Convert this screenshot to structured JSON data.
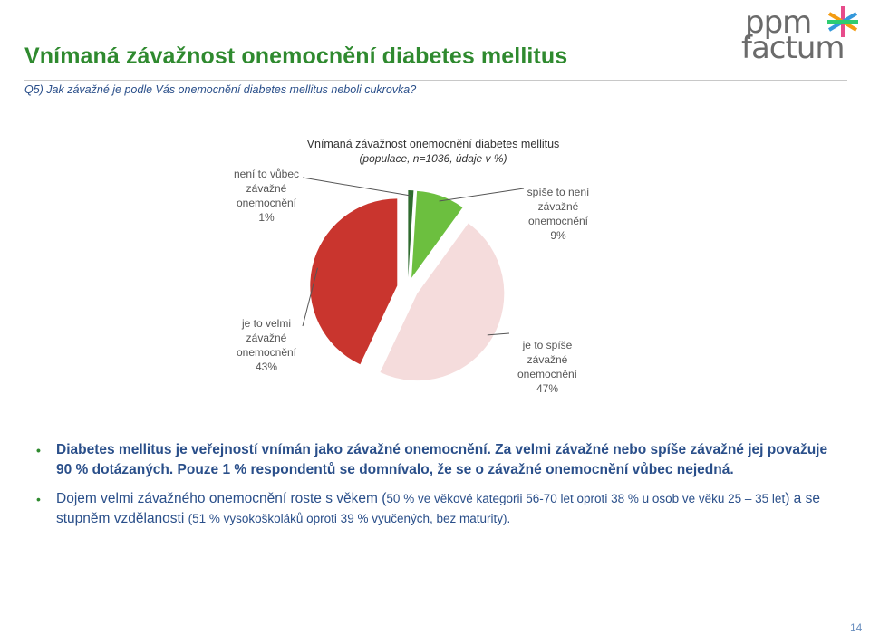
{
  "header": {
    "title": "Vnímaná závažnost onemocnění diabetes mellitus",
    "question": "Q5) Jak závažné je podle Vás onemocnění diabetes mellitus neboli cukrovka?"
  },
  "logo": {
    "line1": "ppm",
    "line2": "factum",
    "colors": [
      "#e74c8b",
      "#f39c12",
      "#3498db",
      "#2ecc71"
    ]
  },
  "chart_data": {
    "type": "pie",
    "title": "Vnímaná závažnost onemocnění diabetes mellitus",
    "subtitle": "(populace, n=1036, údaje v %)",
    "slices": [
      {
        "label_lines": [
          "není to vůbec",
          "závažné",
          "onemocnění",
          "1%"
        ],
        "value": 1,
        "color": "#2e6b2e"
      },
      {
        "label_lines": [
          "spíše to není",
          "závažné",
          "onemocnění",
          "9%"
        ],
        "value": 9,
        "color": "#6cbf3f"
      },
      {
        "label_lines": [
          "je to spíše",
          "závažné",
          "onemocnění",
          "47%"
        ],
        "value": 47,
        "color": "#f5dcdc"
      },
      {
        "label_lines": [
          "je to velmi",
          "závažné",
          "onemocnění",
          "43%"
        ],
        "value": 43,
        "color": "#c9352e"
      }
    ]
  },
  "bullets": [
    {
      "text": "Diabetes mellitus je veřejností vnímán jako závažné onemocnění. Za velmi závažné nebo spíše závažné jej považuje 90 % dotázaných. Pouze 1 % respondentů se domnívalo, že se o závažné onemocnění vůbec nejedná."
    },
    {
      "p1": "Dojem velmi závažného onemocnění roste s věkem (",
      "p2": "50 % ve věkové kategorii 56-70 let oproti 38 % u osob ve věku 25 – 35 let",
      "p3": ") a se stupněm vzdělanosti ",
      "p4": "(51 % vysokoškoláků oproti 39 % vyučených, bez maturity)."
    }
  ],
  "page_number": "14"
}
